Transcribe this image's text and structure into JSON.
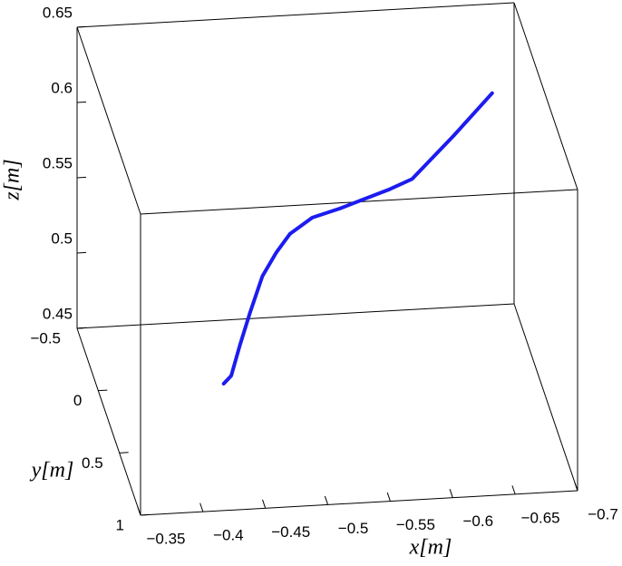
{
  "chart_data": {
    "type": "line3d",
    "x": [
      -0.442,
      -0.448,
      -0.455,
      -0.463,
      -0.473,
      -0.484,
      -0.495,
      -0.513,
      -0.535,
      -0.553,
      -0.575,
      -0.593,
      -0.626,
      -0.657
    ],
    "y": [
      0.25,
      0.25,
      0.25,
      0.25,
      0.25,
      0.25,
      0.25,
      0.25,
      0.25,
      0.25,
      0.25,
      0.25,
      0.25,
      0.25
    ],
    "z": [
      0.471,
      0.476,
      0.496,
      0.517,
      0.541,
      0.556,
      0.568,
      0.578,
      0.583,
      0.588,
      0.594,
      0.6,
      0.627,
      0.654
    ],
    "color": "#1c1cf0",
    "xlim": [
      -0.35,
      -0.7
    ],
    "ylim": [
      -0.5,
      1
    ],
    "zlim": [
      0.45,
      0.65
    ],
    "xticks": [
      {
        "value": -0.35,
        "label": "−0.35"
      },
      {
        "value": -0.4,
        "label": "−0.4"
      },
      {
        "value": -0.45,
        "label": "−0.45"
      },
      {
        "value": -0.5,
        "label": "−0.5"
      },
      {
        "value": -0.55,
        "label": "−0.55"
      },
      {
        "value": -0.6,
        "label": "−0.6"
      },
      {
        "value": -0.65,
        "label": "−0.65"
      },
      {
        "value": -0.7,
        "label": "−0.7"
      }
    ],
    "yticks": [
      {
        "value": -0.5,
        "label": "−0.5"
      },
      0,
      0.5,
      1
    ],
    "zticks": [
      0.45,
      0.5,
      0.55,
      0.6,
      0.65
    ],
    "xlabel": "x[m]",
    "ylabel": "y[m]",
    "zlabel": "z[m]"
  }
}
